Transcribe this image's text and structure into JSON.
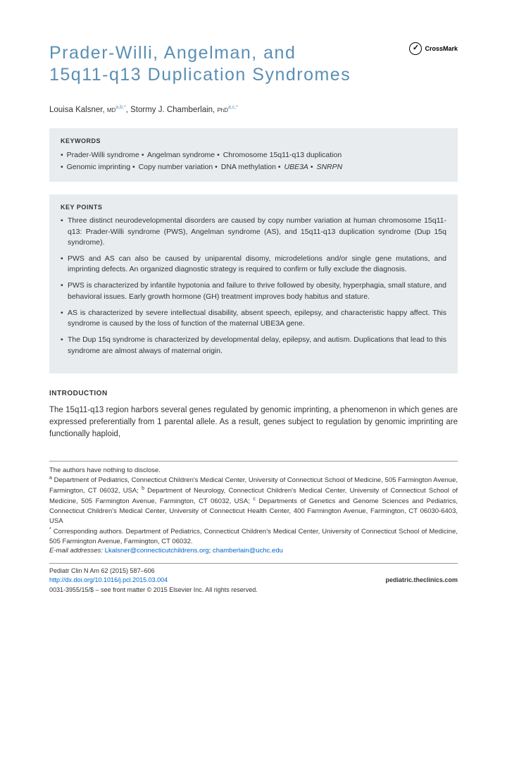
{
  "title": "Prader-Willi, Angelman, and 15q11-q13 Duplication Syndromes",
  "crossmark": "CrossMark",
  "authors": {
    "a1_name": "Louisa Kalsner, ",
    "a1_degree": "MD",
    "a1_sup": "a,b,*",
    "a2_name": ", Stormy J. Chamberlain, ",
    "a2_degree": "PhD",
    "a2_sup": "a,c,*"
  },
  "keywords": {
    "heading": "KEYWORDS",
    "k1": "Prader-Willi syndrome",
    "k2": "Angelman syndrome",
    "k3": "Chromosome 15q11-q13 duplication",
    "k4": "Genomic imprinting",
    "k5": "Copy number variation",
    "k6": "DNA methylation",
    "k7": "UBE3A",
    "k8": "SNRPN"
  },
  "keypoints": {
    "heading": "KEY POINTS",
    "items": [
      "Three distinct neurodevelopmental disorders are caused by copy number variation at human chromosome 15q11-q13: Prader-Willi syndrome (PWS), Angelman syndrome (AS), and 15q11-q13 duplication syndrome (Dup 15q syndrome).",
      "PWS and AS can also be caused by uniparental disomy, microdeletions and/or single gene mutations, and imprinting defects. An organized diagnostic strategy is required to confirm or fully exclude the diagnosis.",
      "PWS is characterized by infantile hypotonia and failure to thrive followed by obesity, hyperphagia, small stature, and behavioral issues. Early growth hormone (GH) treatment improves body habitus and stature.",
      "AS is characterized by severe intellectual disability, absent speech, epilepsy, and characteristic happy affect. This syndrome is caused by the loss of function of the maternal UBE3A gene.",
      "The Dup 15q syndrome is characterized by developmental delay, epilepsy, and autism. Duplications that lead to this syndrome are almost always of maternal origin."
    ]
  },
  "intro": {
    "heading": "INTRODUCTION",
    "text": "The 15q11-q13 region harbors several genes regulated by genomic imprinting, a phenomenon in which genes are expressed preferentially from 1 parental allele. As a result, genes subject to regulation by genomic imprinting are functionally haploid,"
  },
  "footnotes": {
    "disclosure": "The authors have nothing to disclose.",
    "affil_a_sup": "a",
    "affil_a": " Department of Pediatrics, Connecticut Children's Medical Center, University of Connecticut School of Medicine, 505 Farmington Avenue, Farmington, CT 06032, USA; ",
    "affil_b_sup": "b",
    "affil_b": " Department of Neurology, Connecticut Children's Medical Center, University of Connecticut School of Medicine, 505 Farmington Avenue, Farmington, CT 06032, USA; ",
    "affil_c_sup": "c",
    "affil_c": " Departments of Genetics and Genome Sciences and Pediatrics, Connecticut Children's Medical Center, University of Connecticut Health Center, 400 Farmington Avenue, Farmington, CT 06030-6403, USA",
    "corr_sup": "*",
    "corr": " Corresponding authors. Department of Pediatrics, Connecticut Children's Medical Center, University of Connecticut School of Medicine, 505 Farmington Avenue, Farmington, CT 06032.",
    "email_label": "E-mail addresses: ",
    "email1": "Lkalsner@connecticutchildrens.org",
    "email_sep": "; ",
    "email2": "chamberlain@uchc.edu"
  },
  "pubinfo": {
    "journal": "Pediatr Clin N Am 62 (2015) 587–606",
    "doi": "http://dx.doi.org/10.1016/j.pcl.2015.03.004",
    "site": "pediatric.theclinics.com",
    "copyright": "0031-3955/15/$ – see front matter © 2015 Elsevier Inc. All rights reserved."
  },
  "colors": {
    "title": "#5a8fb5",
    "box_bg": "#e8ecef",
    "link": "#0066cc",
    "text": "#333333"
  },
  "fonts": {
    "title_size": 25,
    "body_size": 11.5,
    "box_text": 10.5,
    "footnote": 9.5,
    "pubinfo": 9
  }
}
